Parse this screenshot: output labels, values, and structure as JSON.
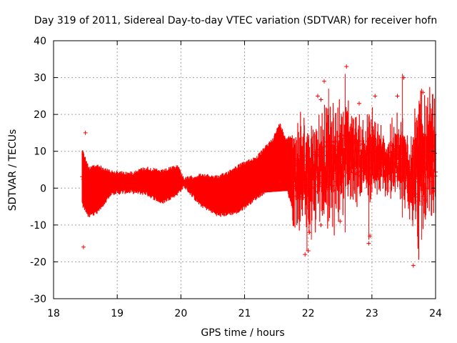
{
  "chart_data": {
    "type": "scatter",
    "title": "Day 319 of 2011, Sidereal Day-to-day VTEC variation (SDTVAR) for receiver hofn",
    "xlabel": "GPS time / hours",
    "ylabel": "SDTVAR / TECUs",
    "xlim": [
      18,
      24
    ],
    "ylim": [
      -30,
      40
    ],
    "xticks": [
      "18",
      "19",
      "20",
      "21",
      "22",
      "23",
      "24"
    ],
    "yticks": [
      "-30",
      "-20",
      "-10",
      "0",
      "10",
      "20",
      "30",
      "40"
    ],
    "grid": true,
    "marker": "+",
    "errorbars": true,
    "series_color": "#ff0000",
    "series": [
      {
        "name": "SDTVAR",
        "band_envelope": [
          {
            "x": 18.45,
            "low": -5,
            "high": 11
          },
          {
            "x": 18.55,
            "low": -8,
            "high": 6
          },
          {
            "x": 18.7,
            "low": -7,
            "high": 6.5
          },
          {
            "x": 18.9,
            "low": -2,
            "high": 5
          },
          {
            "x": 19.2,
            "low": -1.5,
            "high": 4.5
          },
          {
            "x": 19.45,
            "low": -2,
            "high": 6
          },
          {
            "x": 19.7,
            "low": -4.5,
            "high": 5
          },
          {
            "x": 19.95,
            "low": -2,
            "high": 6.5
          },
          {
            "x": 20.05,
            "low": 0,
            "high": 3
          },
          {
            "x": 20.3,
            "low": -5,
            "high": 4
          },
          {
            "x": 20.6,
            "low": -8,
            "high": 3.5
          },
          {
            "x": 20.9,
            "low": -7,
            "high": 6.5
          },
          {
            "x": 21.2,
            "low": -3,
            "high": 9
          },
          {
            "x": 21.45,
            "low": 0,
            "high": 14
          },
          {
            "x": 21.55,
            "low": 1,
            "high": 18
          },
          {
            "x": 21.65,
            "low": 0,
            "high": 14
          },
          {
            "x": 21.8,
            "low": -9,
            "high": 15
          },
          {
            "x": 22.0,
            "low": -8,
            "high": 16
          },
          {
            "x": 22.2,
            "low": -5,
            "high": 18
          },
          {
            "x": 22.4,
            "low": -7,
            "high": 19
          },
          {
            "x": 22.6,
            "low": 0,
            "high": 21
          },
          {
            "x": 22.8,
            "low": -1,
            "high": 17
          },
          {
            "x": 23.0,
            "low": -2,
            "high": 18
          },
          {
            "x": 23.2,
            "low": 0,
            "high": 13
          },
          {
            "x": 23.4,
            "low": -2,
            "high": 17
          },
          {
            "x": 23.6,
            "low": -5,
            "high": 14
          },
          {
            "x": 23.75,
            "low": -12,
            "high": 22
          },
          {
            "x": 23.9,
            "low": -10,
            "high": 22
          },
          {
            "x": 24.0,
            "low": -6,
            "high": 21
          }
        ],
        "lower_branch": [
          {
            "x": 21.3,
            "value": 0
          },
          {
            "x": 21.7,
            "value": 0.5
          }
        ],
        "outliers": [
          {
            "x": 18.47,
            "y": -16
          },
          {
            "x": 18.5,
            "y": 15
          },
          {
            "x": 21.95,
            "y": -18
          },
          {
            "x": 22.0,
            "y": -17
          },
          {
            "x": 22.02,
            "y": -12
          },
          {
            "x": 22.15,
            "y": 25
          },
          {
            "x": 22.2,
            "y": 24
          },
          {
            "x": 22.2,
            "y": -10
          },
          {
            "x": 22.25,
            "y": 29
          },
          {
            "x": 22.5,
            "y": -9
          },
          {
            "x": 22.6,
            "y": 33
          },
          {
            "x": 22.8,
            "y": 23
          },
          {
            "x": 22.95,
            "y": -15
          },
          {
            "x": 22.97,
            "y": -13
          },
          {
            "x": 23.05,
            "y": 25
          },
          {
            "x": 23.4,
            "y": 25
          },
          {
            "x": 23.5,
            "y": 30
          },
          {
            "x": 23.65,
            "y": -21
          },
          {
            "x": 23.8,
            "y": 26
          }
        ]
      }
    ]
  }
}
